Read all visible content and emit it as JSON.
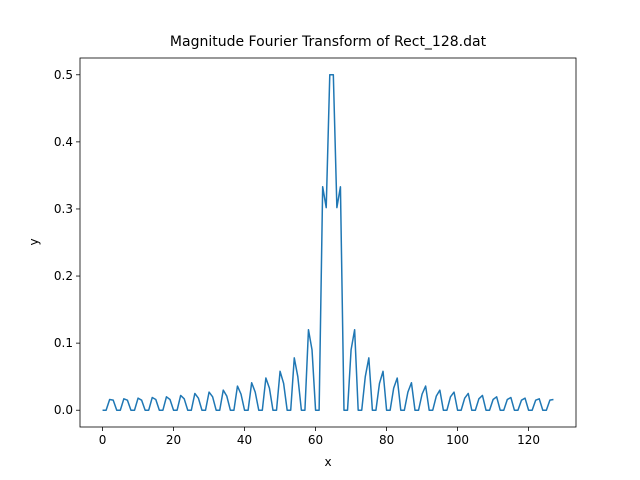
{
  "chart_data": {
    "type": "line",
    "title": "Magnitude Fourier Transform of Rect_128.dat",
    "x_label": "x",
    "y_label": "y",
    "x": [
      0,
      1,
      2,
      3,
      4,
      5,
      6,
      7,
      8,
      9,
      10,
      11,
      12,
      13,
      14,
      15,
      16,
      17,
      18,
      19,
      20,
      21,
      22,
      23,
      24,
      25,
      26,
      27,
      28,
      29,
      30,
      31,
      32,
      33,
      34,
      35,
      36,
      37,
      38,
      39,
      40,
      41,
      42,
      43,
      44,
      45,
      46,
      47,
      48,
      49,
      50,
      51,
      52,
      53,
      54,
      55,
      56,
      57,
      58,
      59,
      60,
      61,
      62,
      63,
      64,
      65,
      66,
      67,
      68,
      69,
      70,
      71,
      72,
      73,
      74,
      75,
      76,
      77,
      78,
      79,
      80,
      81,
      82,
      83,
      84,
      85,
      86,
      87,
      88,
      89,
      90,
      91,
      92,
      93,
      94,
      95,
      96,
      97,
      98,
      99,
      100,
      101,
      102,
      103,
      104,
      105,
      106,
      107,
      108,
      109,
      110,
      111,
      112,
      113,
      114,
      115,
      116,
      117,
      118,
      119,
      120,
      121,
      122,
      123,
      124,
      125,
      126,
      127
    ],
    "series": [
      {
        "color": "#1f77b4",
        "values": [
          0,
          0,
          0.016,
          0.015,
          0,
          0,
          0.017,
          0.015,
          0,
          0,
          0.018,
          0.015,
          0,
          0,
          0.019,
          0.016,
          0,
          0,
          0.02,
          0.016,
          0,
          0,
          0.022,
          0.017,
          0,
          0,
          0.025,
          0.018,
          0,
          0,
          0.027,
          0.02,
          0,
          0,
          0.03,
          0.021,
          0,
          0,
          0.036,
          0.024,
          0,
          0,
          0.041,
          0.027,
          0,
          0,
          0.048,
          0.033,
          0,
          0,
          0.058,
          0.04,
          0,
          0,
          0.078,
          0.05,
          0,
          0,
          0.12,
          0.09,
          0,
          0,
          0.333,
          0.302,
          0.5,
          0.5,
          0.302,
          0.333,
          0,
          0,
          0.09,
          0.12,
          0,
          0,
          0.05,
          0.078,
          0,
          0,
          0.04,
          0.058,
          0,
          0,
          0.033,
          0.048,
          0,
          0,
          0.027,
          0.041,
          0,
          0,
          0.024,
          0.036,
          0,
          0,
          0.021,
          0.03,
          0,
          0,
          0.02,
          0.027,
          0,
          0,
          0.018,
          0.025,
          0,
          0,
          0.017,
          0.022,
          0,
          0,
          0.016,
          0.02,
          0,
          0,
          0.016,
          0.019,
          0,
          0,
          0.015,
          0.018,
          0,
          0,
          0.015,
          0.017,
          0,
          0,
          0.015,
          0.016
        ]
      }
    ],
    "xlim": [
      -6.35,
      133.35
    ],
    "ylim": [
      -0.025,
      0.525
    ],
    "xticks": [
      0,
      20,
      40,
      60,
      80,
      100,
      120
    ],
    "yticks": [
      {
        "value": 0,
        "label": "0.0"
      },
      0.1,
      0.2,
      0.3,
      0.4,
      0.5
    ],
    "grid": false
  }
}
